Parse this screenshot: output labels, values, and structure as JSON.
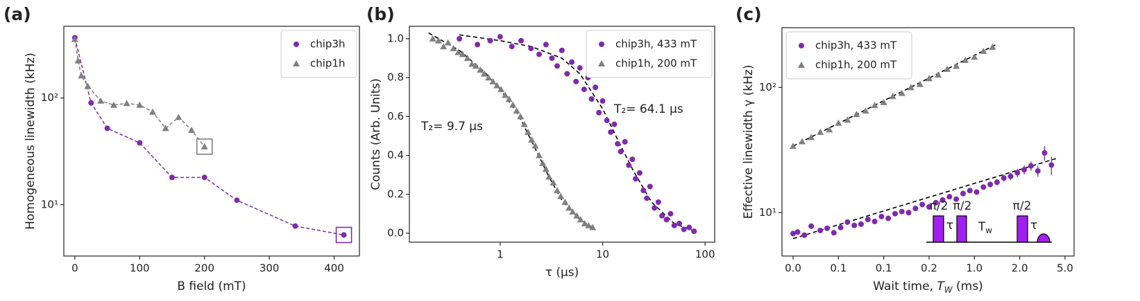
{
  "chart_data": [
    {
      "type": "scatter",
      "panel_label": "(a)",
      "xlabel": "B field (mT)",
      "ylabel": "Homogeneous linewidth (kHz)",
      "xlim": [
        -17,
        439
      ],
      "xticks": [
        0,
        100,
        200,
        300,
        400
      ],
      "xscale": "linear",
      "ylim": [
        3.3,
        470
      ],
      "yticks": [
        {
          "value": 10,
          "label": "10¹"
        },
        {
          "value": 100,
          "label": "10²"
        }
      ],
      "yscale": "log",
      "legend": "upper right",
      "connect": true,
      "highlight_last": true,
      "series": [
        {
          "name": "chip3h",
          "color": "#7d2aae",
          "marker": "circle",
          "x": [
            0,
            25,
            50,
            100,
            150,
            200,
            250,
            340,
            415
          ],
          "values": [
            367,
            90,
            52,
            38,
            18,
            18,
            11,
            6.3,
            5.2
          ]
        },
        {
          "name": "chip1h",
          "color": "#808080",
          "marker": "triangle",
          "x": [
            0,
            5,
            10,
            20,
            40,
            60,
            80,
            100,
            120,
            140,
            160,
            180,
            200
          ],
          "values": [
            355,
            224,
            162,
            129,
            94,
            86,
            89,
            86,
            74,
            52,
            66,
            50,
            35
          ]
        }
      ]
    },
    {
      "type": "scatter",
      "panel_label": "(b)",
      "xlabel": "τ (μs)",
      "ylabel": "Counts (Arb. Units)",
      "xlim": [
        0.13,
        124
      ],
      "xticks": [
        1,
        10,
        100
      ],
      "xscale": "log",
      "ylim": [
        -0.046,
        1.064
      ],
      "yticks": [
        {
          "value": 0,
          "label": "0.0"
        },
        0.2,
        0.4,
        0.6,
        0.8,
        {
          "value": 1,
          "label": "1.0"
        }
      ],
      "yscale": "linear",
      "legend": "upper right",
      "annotations": [
        {
          "text": "T₂= 9.7 μs",
          "color": "#444444"
        },
        {
          "text": "T₂= 64.1 μs",
          "color": "#7d2aae"
        }
      ],
      "series": [
        {
          "name": "chip3h, 433 mT",
          "color": "#7d2aae",
          "marker": "circle",
          "x": [
            0.4,
            0.6,
            0.8,
            1.0,
            1.3,
            1.6,
            2.0,
            2.4,
            2.8,
            3.2,
            3.6,
            4.0,
            4.5,
            5.0,
            5.5,
            6.0,
            6.6,
            7.2,
            7.8,
            8.5,
            9.2,
            10,
            11,
            12,
            13,
            14,
            15,
            16.5,
            18,
            19.5,
            21,
            23,
            25,
            27,
            29,
            32,
            35,
            38,
            42,
            46,
            50,
            56,
            62,
            70,
            78
          ],
          "values": [
            1.0,
            0.97,
            0.99,
            1.01,
            0.96,
            0.99,
            0.95,
            0.92,
            0.97,
            0.9,
            0.86,
            0.94,
            0.82,
            0.88,
            0.78,
            0.85,
            0.74,
            0.8,
            0.69,
            0.75,
            0.62,
            0.68,
            0.58,
            0.52,
            0.56,
            0.46,
            0.42,
            0.47,
            0.35,
            0.38,
            0.28,
            0.31,
            0.22,
            0.18,
            0.24,
            0.13,
            0.16,
            0.09,
            0.07,
            0.1,
            0.04,
            0.05,
            0.02,
            0.03,
            0.01
          ]
        },
        {
          "name": "chip1h, 200 mT",
          "color": "#808080",
          "marker": "triangle",
          "x": [
            0.22,
            0.25,
            0.28,
            0.31,
            0.35,
            0.39,
            0.43,
            0.48,
            0.53,
            0.58,
            0.64,
            0.7,
            0.77,
            0.85,
            0.93,
            1.02,
            1.12,
            1.22,
            1.33,
            1.45,
            1.58,
            1.72,
            1.87,
            2.03,
            2.2,
            2.4,
            2.6,
            2.8,
            3.0,
            3.3,
            3.6,
            3.9,
            4.3,
            4.7,
            5.1,
            5.6,
            6.1,
            6.7,
            7.3,
            8.0
          ],
          "values": [
            1.0,
            0.99,
            0.96,
            0.98,
            0.95,
            0.93,
            0.92,
            0.9,
            0.87,
            0.86,
            0.84,
            0.82,
            0.8,
            0.78,
            0.76,
            0.74,
            0.71,
            0.69,
            0.66,
            0.63,
            0.6,
            0.56,
            0.52,
            0.48,
            0.45,
            0.4,
            0.36,
            0.33,
            0.29,
            0.26,
            0.22,
            0.19,
            0.16,
            0.13,
            0.11,
            0.09,
            0.07,
            0.05,
            0.04,
            0.03
          ]
        }
      ],
      "fits": [
        {
          "color": "#000000",
          "x": [
            0.2,
            0.4,
            0.7,
            1,
            1.5,
            2,
            3,
            4,
            6,
            8
          ],
          "values": [
            1.03,
            0.94,
            0.83,
            0.74,
            0.61,
            0.48,
            0.29,
            0.17,
            0.07,
            0.03
          ]
        },
        {
          "color": "#000000",
          "x": [
            0.4,
            1,
            2,
            4,
            6,
            10,
            15,
            20,
            30,
            50,
            80
          ],
          "values": [
            1.02,
            0.99,
            0.96,
            0.9,
            0.82,
            0.64,
            0.45,
            0.32,
            0.16,
            0.05,
            0.01
          ]
        }
      ]
    },
    {
      "type": "scatter",
      "panel_label": "(c)",
      "xlabel_parts": [
        "Wait time, ",
        "T",
        "W",
        " (ms)"
      ],
      "ylabel": "Effective linewidth γ (kHz)",
      "xlim": [
        -0.245,
        6.2
      ],
      "xticks": [
        {
          "value": 0,
          "label": "0.0"
        },
        {
          "value": 1,
          "label": "0.1"
        },
        {
          "value": 2,
          "label": "0.1"
        },
        {
          "value": 3,
          "label": "0.2"
        },
        {
          "value": 4,
          "label": "1.0"
        },
        {
          "value": 5,
          "label": "2.0"
        },
        {
          "value": 6,
          "label": "5.0"
        }
      ],
      "xscale": "linear",
      "ylim": [
        4.5,
        300
      ],
      "yticks": [
        {
          "value": 10,
          "label": "10¹"
        },
        {
          "value": 100,
          "label": "10²"
        }
      ],
      "yscale": "log",
      "legend": "upper left",
      "pulse_labels": [
        "π/2",
        "τ",
        "π/2",
        "T",
        "w",
        "π/2",
        "τ"
      ],
      "series": [
        {
          "name": "chip3h, 433 mT",
          "color": "#7d2aae",
          "marker": "circle",
          "x": [
            0,
            0.1,
            0.25,
            0.4,
            0.6,
            0.75,
            0.9,
            1.05,
            1.2,
            1.35,
            1.5,
            1.65,
            1.8,
            1.95,
            2.1,
            2.25,
            2.4,
            2.55,
            2.7,
            2.85,
            3.0,
            3.15,
            3.3,
            3.45,
            3.6,
            3.75,
            3.9,
            4.05,
            4.2,
            4.35,
            4.5,
            4.65,
            4.8,
            4.95,
            5.1,
            5.25,
            5.4,
            5.55,
            5.7
          ],
          "values": [
            6.8,
            7.0,
            6.6,
            7.8,
            7.2,
            7.5,
            6.9,
            7.6,
            8.4,
            7.9,
            8.1,
            8.8,
            8.5,
            9.3,
            9.0,
            9.8,
            10.2,
            10.0,
            10.8,
            11.6,
            11.1,
            12.0,
            12.6,
            13.4,
            12.8,
            14.2,
            15.0,
            14.6,
            16.0,
            16.8,
            17.5,
            18.9,
            19.5,
            20.8,
            22.0,
            23.6,
            21.5,
            30,
            24
          ],
          "errors": [
            0.3,
            0.3,
            0.3,
            0.3,
            0.3,
            0.3,
            0.3,
            0.3,
            0.3,
            0.3,
            0.4,
            0.4,
            0.4,
            0.4,
            0.4,
            0.4,
            0.4,
            0.5,
            0.5,
            0.5,
            0.5,
            0.5,
            0.6,
            0.6,
            0.6,
            0.7,
            0.7,
            0.7,
            0.8,
            0.9,
            1.0,
            1.2,
            1.4,
            1.6,
            1.8,
            2.0,
            2.2,
            4,
            4
          ]
        },
        {
          "name": "chip1h, 200 mT",
          "color": "#808080",
          "marker": "triangle",
          "x": [
            0,
            0.2,
            0.4,
            0.6,
            0.8,
            1.0,
            1.2,
            1.4,
            1.6,
            1.8,
            2.0,
            2.2,
            2.4,
            2.6,
            2.8,
            3.0,
            3.2,
            3.4,
            3.6,
            3.8,
            4.0,
            4.2,
            4.4
          ],
          "values": [
            34,
            37,
            40,
            44,
            46,
            52,
            55,
            61,
            65,
            72,
            76,
            85,
            90,
            100,
            106,
            118,
            126,
            140,
            148,
            165,
            175,
            195,
            210
          ]
        }
      ],
      "fits": [
        {
          "color": "#000000",
          "x": [
            0,
            5.8
          ],
          "values": [
            6.2,
            27
          ]
        },
        {
          "color": "#000000",
          "x": [
            0,
            4.5
          ],
          "values": [
            34,
            222
          ]
        }
      ]
    }
  ]
}
